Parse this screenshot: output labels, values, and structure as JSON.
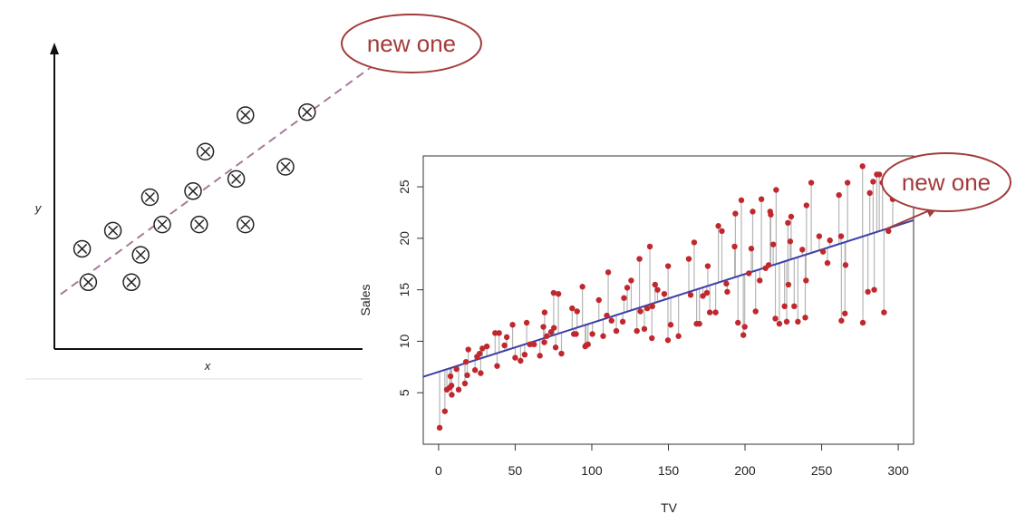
{
  "annotation_text": "new one",
  "annotation_color": "#a33b3b",
  "chart_data": [
    {
      "type": "scatter",
      "title": "",
      "xlabel": "x",
      "ylabel": "y",
      "xticks": [],
      "yticks": [],
      "xlim": [
        0,
        10
      ],
      "ylim": [
        0,
        10
      ],
      "marker": "circled-x",
      "points": [
        {
          "x": 0.9,
          "y": 3.3
        },
        {
          "x": 1.1,
          "y": 2.2
        },
        {
          "x": 1.9,
          "y": 3.9
        },
        {
          "x": 2.5,
          "y": 2.2
        },
        {
          "x": 2.8,
          "y": 3.1
        },
        {
          "x": 3.1,
          "y": 5.0
        },
        {
          "x": 3.5,
          "y": 4.1
        },
        {
          "x": 4.5,
          "y": 5.2
        },
        {
          "x": 4.7,
          "y": 4.1
        },
        {
          "x": 4.9,
          "y": 6.5
        },
        {
          "x": 5.9,
          "y": 5.6
        },
        {
          "x": 6.2,
          "y": 7.7
        },
        {
          "x": 6.2,
          "y": 4.1
        },
        {
          "x": 7.5,
          "y": 6.0
        },
        {
          "x": 8.2,
          "y": 7.8
        }
      ],
      "trend_line": {
        "x0": 0.2,
        "y0": 1.8,
        "x1": 10.3,
        "y1": 9.3,
        "style": "dashed",
        "color": "#a87a9a"
      },
      "extrapolation_arrow": {
        "x1": 11.5,
        "y1": 10.4
      }
    },
    {
      "type": "scatter",
      "title": "",
      "xlabel": "TV",
      "ylabel": "Sales",
      "xlim": [
        -10,
        310
      ],
      "ylim": [
        0,
        28
      ],
      "xticks": [
        0,
        50,
        100,
        150,
        200,
        250,
        300
      ],
      "yticks": [
        5,
        10,
        15,
        20,
        25
      ],
      "point_color": "#c0282d",
      "residual_color": "#b5b5b5",
      "fit_line": {
        "intercept": 7.03,
        "slope": 0.0475,
        "color": "#3c3fa8"
      },
      "extrapolation_arrow": {
        "x0": 292,
        "y0": 20.9,
        "x1": 325,
        "y1": 23.0
      },
      "points": [
        {
          "x": 0.7,
          "y": 1.6
        },
        {
          "x": 4.1,
          "y": 3.2
        },
        {
          "x": 5.4,
          "y": 5.3
        },
        {
          "x": 7.3,
          "y": 5.5
        },
        {
          "x": 7.8,
          "y": 6.6
        },
        {
          "x": 8.4,
          "y": 5.7
        },
        {
          "x": 8.6,
          "y": 4.8
        },
        {
          "x": 11.7,
          "y": 7.3
        },
        {
          "x": 13.1,
          "y": 5.3
        },
        {
          "x": 17.2,
          "y": 5.9
        },
        {
          "x": 17.9,
          "y": 8.0
        },
        {
          "x": 18.7,
          "y": 6.7
        },
        {
          "x": 19.4,
          "y": 9.2
        },
        {
          "x": 23.8,
          "y": 7.2
        },
        {
          "x": 25.1,
          "y": 8.5
        },
        {
          "x": 26.8,
          "y": 8.8
        },
        {
          "x": 27.5,
          "y": 6.9
        },
        {
          "x": 28.6,
          "y": 9.3
        },
        {
          "x": 31.5,
          "y": 9.5
        },
        {
          "x": 36.9,
          "y": 10.8
        },
        {
          "x": 38.2,
          "y": 7.6
        },
        {
          "x": 39.5,
          "y": 10.8
        },
        {
          "x": 43.0,
          "y": 9.6
        },
        {
          "x": 44.5,
          "y": 10.4
        },
        {
          "x": 48.3,
          "y": 11.6
        },
        {
          "x": 50.0,
          "y": 8.4
        },
        {
          "x": 53.5,
          "y": 8.1
        },
        {
          "x": 56.2,
          "y": 8.7
        },
        {
          "x": 57.5,
          "y": 11.8
        },
        {
          "x": 59.6,
          "y": 9.7
        },
        {
          "x": 62.3,
          "y": 9.7
        },
        {
          "x": 66.1,
          "y": 8.6
        },
        {
          "x": 68.4,
          "y": 11.4
        },
        {
          "x": 69.0,
          "y": 9.9
        },
        {
          "x": 69.2,
          "y": 12.8
        },
        {
          "x": 70.6,
          "y": 10.5
        },
        {
          "x": 73.4,
          "y": 10.9
        },
        {
          "x": 75.1,
          "y": 14.7
        },
        {
          "x": 75.3,
          "y": 11.3
        },
        {
          "x": 76.4,
          "y": 9.4
        },
        {
          "x": 78.2,
          "y": 14.6
        },
        {
          "x": 80.2,
          "y": 8.8
        },
        {
          "x": 87.2,
          "y": 13.2
        },
        {
          "x": 88.3,
          "y": 10.7
        },
        {
          "x": 89.7,
          "y": 10.7
        },
        {
          "x": 90.4,
          "y": 12.9
        },
        {
          "x": 93.9,
          "y": 15.3
        },
        {
          "x": 95.7,
          "y": 9.5
        },
        {
          "x": 96.2,
          "y": 9.6
        },
        {
          "x": 97.5,
          "y": 9.7
        },
        {
          "x": 100.4,
          "y": 10.7
        },
        {
          "x": 104.6,
          "y": 14.0
        },
        {
          "x": 107.4,
          "y": 10.5
        },
        {
          "x": 109.8,
          "y": 12.5
        },
        {
          "x": 110.7,
          "y": 16.7
        },
        {
          "x": 112.9,
          "y": 12.0
        },
        {
          "x": 116.0,
          "y": 11.0
        },
        {
          "x": 120.2,
          "y": 11.9
        },
        {
          "x": 121.0,
          "y": 14.2
        },
        {
          "x": 123.1,
          "y": 15.2
        },
        {
          "x": 125.7,
          "y": 15.9
        },
        {
          "x": 129.4,
          "y": 11.0
        },
        {
          "x": 131.1,
          "y": 18.0
        },
        {
          "x": 131.7,
          "y": 12.9
        },
        {
          "x": 134.3,
          "y": 11.2
        },
        {
          "x": 136.2,
          "y": 13.2
        },
        {
          "x": 137.9,
          "y": 19.2
        },
        {
          "x": 139.2,
          "y": 10.3
        },
        {
          "x": 139.5,
          "y": 13.4
        },
        {
          "x": 141.3,
          "y": 15.5
        },
        {
          "x": 142.9,
          "y": 15.0
        },
        {
          "x": 147.3,
          "y": 14.6
        },
        {
          "x": 149.7,
          "y": 10.1
        },
        {
          "x": 149.8,
          "y": 17.3
        },
        {
          "x": 151.5,
          "y": 11.6
        },
        {
          "x": 156.6,
          "y": 10.5
        },
        {
          "x": 163.3,
          "y": 18.0
        },
        {
          "x": 164.5,
          "y": 14.5
        },
        {
          "x": 166.8,
          "y": 19.6
        },
        {
          "x": 168.4,
          "y": 11.7
        },
        {
          "x": 170.2,
          "y": 11.7
        },
        {
          "x": 172.5,
          "y": 14.4
        },
        {
          "x": 175.1,
          "y": 14.7
        },
        {
          "x": 175.7,
          "y": 17.3
        },
        {
          "x": 177.0,
          "y": 12.8
        },
        {
          "x": 180.8,
          "y": 12.8
        },
        {
          "x": 182.6,
          "y": 21.2
        },
        {
          "x": 184.9,
          "y": 20.7
        },
        {
          "x": 187.8,
          "y": 15.6
        },
        {
          "x": 188.4,
          "y": 14.8
        },
        {
          "x": 193.2,
          "y": 19.2
        },
        {
          "x": 193.7,
          "y": 22.4
        },
        {
          "x": 195.4,
          "y": 11.8
        },
        {
          "x": 197.6,
          "y": 23.7
        },
        {
          "x": 198.9,
          "y": 10.6
        },
        {
          "x": 199.8,
          "y": 11.4
        },
        {
          "x": 202.5,
          "y": 16.6
        },
        {
          "x": 204.1,
          "y": 19.0
        },
        {
          "x": 205.0,
          "y": 22.6
        },
        {
          "x": 206.9,
          "y": 12.9
        },
        {
          "x": 209.6,
          "y": 15.9
        },
        {
          "x": 210.7,
          "y": 23.8
        },
        {
          "x": 213.4,
          "y": 17.1
        },
        {
          "x": 215.4,
          "y": 17.4
        },
        {
          "x": 216.4,
          "y": 22.6
        },
        {
          "x": 216.8,
          "y": 22.3
        },
        {
          "x": 218.4,
          "y": 19.4
        },
        {
          "x": 219.8,
          "y": 12.2
        },
        {
          "x": 220.3,
          "y": 24.7
        },
        {
          "x": 222.4,
          "y": 11.7
        },
        {
          "x": 225.8,
          "y": 13.4
        },
        {
          "x": 227.2,
          "y": 11.9
        },
        {
          "x": 228.0,
          "y": 21.5
        },
        {
          "x": 228.3,
          "y": 15.5
        },
        {
          "x": 229.5,
          "y": 19.7
        },
        {
          "x": 230.1,
          "y": 22.1
        },
        {
          "x": 232.1,
          "y": 13.4
        },
        {
          "x": 234.5,
          "y": 11.9
        },
        {
          "x": 237.4,
          "y": 18.9
        },
        {
          "x": 239.3,
          "y": 12.3
        },
        {
          "x": 239.8,
          "y": 15.9
        },
        {
          "x": 240.1,
          "y": 23.2
        },
        {
          "x": 243.2,
          "y": 25.4
        },
        {
          "x": 248.4,
          "y": 20.2
        },
        {
          "x": 250.9,
          "y": 18.7
        },
        {
          "x": 253.8,
          "y": 17.6
        },
        {
          "x": 255.4,
          "y": 19.8
        },
        {
          "x": 261.3,
          "y": 24.2
        },
        {
          "x": 262.7,
          "y": 20.2
        },
        {
          "x": 262.9,
          "y": 12.0
        },
        {
          "x": 265.2,
          "y": 12.7
        },
        {
          "x": 265.6,
          "y": 17.4
        },
        {
          "x": 266.9,
          "y": 25.4
        },
        {
          "x": 276.7,
          "y": 27.0
        },
        {
          "x": 276.9,
          "y": 11.8
        },
        {
          "x": 280.2,
          "y": 14.8
        },
        {
          "x": 281.4,
          "y": 24.4
        },
        {
          "x": 283.6,
          "y": 25.5
        },
        {
          "x": 284.3,
          "y": 15.0
        },
        {
          "x": 286.0,
          "y": 26.2
        },
        {
          "x": 287.6,
          "y": 26.2
        },
        {
          "x": 289.7,
          "y": 25.4
        },
        {
          "x": 290.7,
          "y": 12.8
        },
        {
          "x": 293.6,
          "y": 20.7
        },
        {
          "x": 296.4,
          "y": 23.8
        }
      ]
    }
  ]
}
